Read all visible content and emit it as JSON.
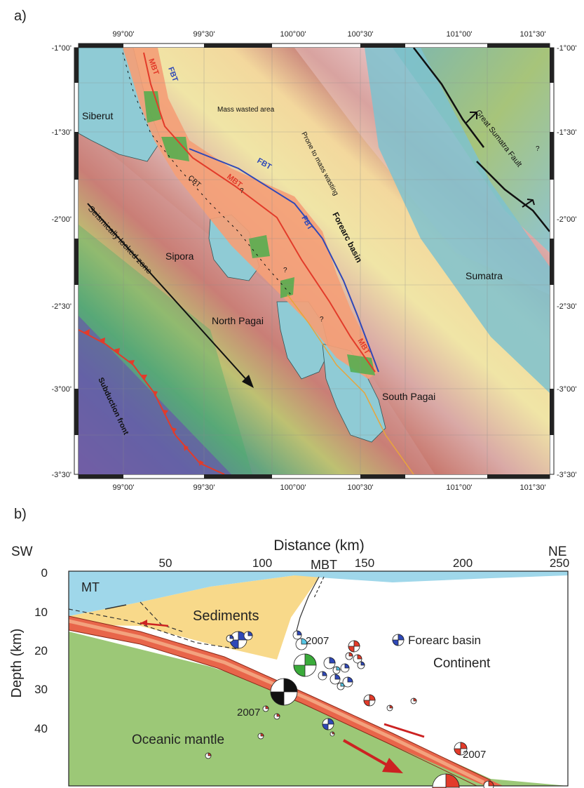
{
  "panel_a": {
    "label": "a)",
    "top_ticks": [
      "99°00'",
      "99°30'",
      "100°00'",
      "100°30'",
      "101°00'",
      "101°30'"
    ],
    "bottom_ticks": [
      "99°00'",
      "99°30'",
      "100°00'",
      "100°30'",
      "101°00'",
      "101°30'"
    ],
    "left_ticks": [
      "-1°00'",
      "-1°30'",
      "-2°00'",
      "-2°30'",
      "-3°00'",
      "-3°30'"
    ],
    "right_ticks": [
      "-1°00'",
      "-1°30'",
      "-2°00'",
      "-2°30'",
      "-3°00'",
      "-3°30'"
    ],
    "labels": {
      "siberut": "Siberut",
      "sipora": "Sipora",
      "north_pagai": "North Pagai",
      "south_pagai": "South Pagai",
      "sumatra": "Sumatra",
      "forearc_basin": "Forearc basin",
      "mass_wasted": "Mass wasted area",
      "prone": "Prone to mass wasting",
      "locked": "Seismically locked zone",
      "subduction_front": "Subduction front",
      "gsf": "Great  Sumatra Fault",
      "mbt1": "MBT",
      "mbt2": "MBT",
      "mbt3": "MBT",
      "fbt1": "FBT",
      "fbt2": "FBT",
      "fbt3": "FBT",
      "cbt": "CBT",
      "q1": "?",
      "q2": "?",
      "q3": "?",
      "q4": "?"
    }
  },
  "panel_b": {
    "label": "b)",
    "sw": "SW",
    "ne": "NE",
    "x_title": "Distance (km)",
    "y_title": "Depth (km)",
    "x_ticks": [
      "50",
      "100",
      "150",
      "200",
      "250"
    ],
    "y_ticks": [
      "0",
      "10",
      "20",
      "30",
      "40"
    ],
    "mbt": "MBT",
    "mt": "MT",
    "sediments": "Sediments",
    "continent": "Continent",
    "oceanic_mantle": "Oceanic mantle",
    "legend_forearc": "Forearc basin",
    "year_labels": [
      "2007",
      "2007",
      "2007"
    ]
  },
  "colors": {
    "water": "#9fd7ea",
    "sediments": "#f8d98a",
    "mantle": "#9cc877",
    "slab": "#e8654a",
    "slab_core": "#f3a27e",
    "thrust": "#e23b2a",
    "fbt": "#2f48b8",
    "mbt_zone": "#f4a077"
  }
}
